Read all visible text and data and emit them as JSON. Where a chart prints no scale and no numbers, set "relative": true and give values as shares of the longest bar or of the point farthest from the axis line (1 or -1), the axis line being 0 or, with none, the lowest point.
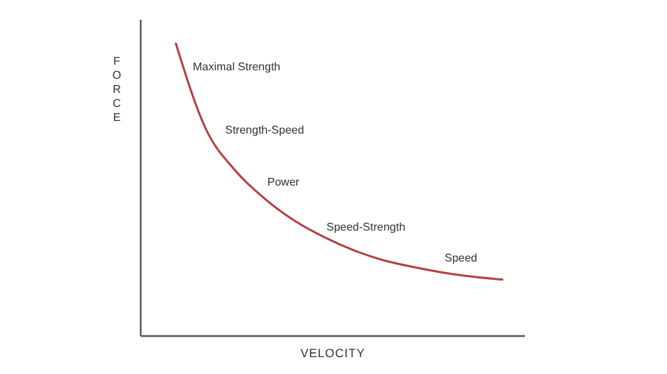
{
  "chart_data": {
    "type": "line",
    "xlabel": "VELOCITY",
    "ylabel": "FORCE",
    "relative": true,
    "categories": [
      null,
      null,
      null,
      null,
      null,
      null,
      null,
      null,
      null,
      null,
      null,
      null
    ],
    "series": [
      {
        "color": "#b5403f",
        "values": [
          1,
          0.71,
          0.566,
          0.469,
          0.394,
          0.338,
          0.293,
          0.259,
          0.236,
          0.217,
          0.203,
          0.193
        ]
      }
    ],
    "annotations": [
      "Maximal Strength",
      "Strength-Speed",
      "Power",
      "Speed-Strength",
      "Speed"
    ]
  }
}
